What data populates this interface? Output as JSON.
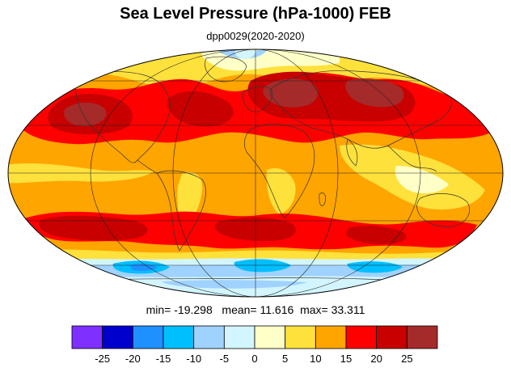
{
  "title": "Sea Level Pressure (hPa-1000) FEB",
  "subtitle": "dpp0029(2020-2020)",
  "stats": {
    "min_label": "min=",
    "min": "-19.298",
    "mean_label": "mean=",
    "mean": "11.616",
    "max_label": "max=",
    "max": "33.311"
  },
  "colorbar": {
    "colors": [
      "#7f2fff",
      "#0000cd",
      "#1e90ff",
      "#00bfff",
      "#a0d2ff",
      "#d2f5ff",
      "#ffffc8",
      "#ffe13c",
      "#ffa500",
      "#ff0000",
      "#c80000",
      "#a52a2a"
    ],
    "tick_labels": [
      "-25",
      "-20",
      "-15",
      "-10",
      "-5",
      "0",
      "5",
      "10",
      "15",
      "20",
      "25"
    ]
  },
  "map": {
    "projection": "mollweide",
    "graticule": "30 degree lines",
    "coastlines": true,
    "colors": {
      "ocean_base": "#ffa500",
      "high": "#ff0000",
      "very_high": "#c80000",
      "peak": "#a52a2a",
      "moderate": "#ffe13c",
      "neutral": "#ffffc8",
      "low_pale": "#d2f5ff",
      "low_light": "#a0d2ff",
      "low_blue": "#00bfff",
      "low_strong": "#1e90ff"
    }
  }
}
